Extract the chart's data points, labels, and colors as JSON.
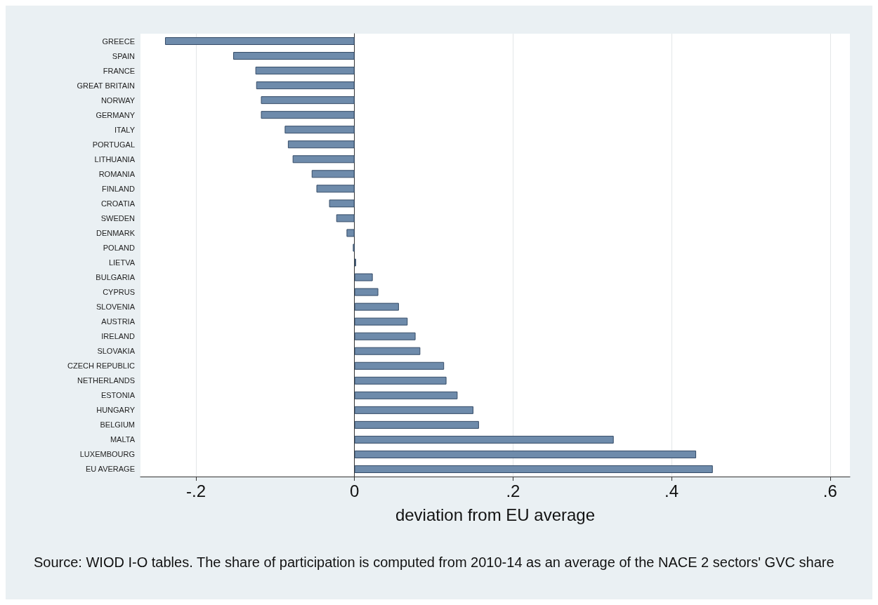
{
  "chart_data": {
    "type": "bar",
    "orientation": "horizontal",
    "xlabel": "deviation from EU average",
    "categories": [
      "GREECE",
      "SPAIN",
      "FRANCE",
      "GREAT BRITAIN",
      "NORWAY",
      "GERMANY",
      "ITALY",
      "PORTUGAL",
      "LITHUANIA",
      "ROMANIA",
      "FINLAND",
      "CROATIA",
      "SWEDEN",
      "DENMARK",
      "POLAND",
      "LIETVA",
      "BULGARIA",
      "CYPRUS",
      "SLOVENIA",
      "AUSTRIA",
      "IRELAND",
      "SLOVAKIA",
      "CZECH REPUBLIC",
      "NETHERLANDS",
      "ESTONIA",
      "HUNGARY",
      "BELGIUM",
      "MALTA",
      "LUXEMBOURG",
      "EU AVERAGE"
    ],
    "values": [
      -0.239,
      -0.153,
      -0.125,
      -0.124,
      -0.118,
      -0.118,
      -0.088,
      -0.084,
      -0.078,
      -0.054,
      -0.048,
      -0.032,
      -0.023,
      -0.01,
      -0.002,
      0.002,
      0.023,
      0.03,
      0.056,
      0.067,
      0.077,
      0.083,
      0.113,
      0.116,
      0.13,
      0.15,
      0.157,
      0.327,
      0.431,
      0.452
    ],
    "color": "#6e8bab",
    "xlim": [
      -0.27,
      0.625
    ],
    "xticks": [
      {
        "value": -0.2,
        "label": "-.2"
      },
      {
        "value": 0,
        "label": "0"
      },
      {
        "value": 0.2,
        "label": ".2"
      },
      {
        "value": 0.4,
        "label": ".4"
      },
      {
        "value": 0.6,
        "label": ".6"
      }
    ],
    "grid": "x",
    "annotations": [
      "Source: WIOD I-O tables. The share of participation is computed from 2010-14 as an average of the NACE 2 sectors' GVC share"
    ]
  }
}
